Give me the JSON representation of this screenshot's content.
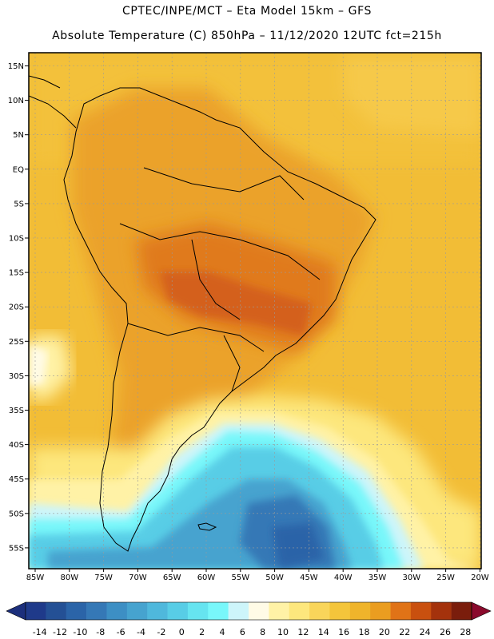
{
  "header": {
    "line1": "CPTEC/INPE/MCT –  Eta Model 15km – GFS",
    "line2": "Absolute Temperature (C) 850hPa – 11/12/2020 12UTC fct=215h"
  },
  "map": {
    "lat_labels": [
      "15N",
      "10N",
      "5N",
      "EQ",
      "5S",
      "10S",
      "15S",
      "20S",
      "25S",
      "30S",
      "35S",
      "40S",
      "45S",
      "50S",
      "55S"
    ],
    "lon_labels": [
      "85W",
      "80W",
      "75W",
      "70W",
      "65W",
      "60W",
      "55W",
      "50W",
      "45W",
      "40W",
      "35W",
      "30W",
      "25W",
      "20W"
    ],
    "colorbar": {
      "labels": [
        "-14",
        "-12",
        "-10",
        "-8",
        "-6",
        "-4",
        "-2",
        "0",
        "2",
        "4",
        "6",
        "8",
        "10",
        "12",
        "14",
        "16",
        "18",
        "20",
        "22",
        "24",
        "26",
        "28"
      ],
      "colors": [
        "#1f3a8a",
        "#245095",
        "#2b64a8",
        "#3578b6",
        "#3d8fc4",
        "#46a3cf",
        "#4fb8dc",
        "#58cde6",
        "#66e4f0",
        "#78f7fa",
        "#cdf5fa",
        "#fffbe6",
        "#fff2a6",
        "#fde77d",
        "#f9d55a",
        "#f4c53b",
        "#efb42b",
        "#ea9d20",
        "#e07317",
        "#c9500f",
        "#a4320c",
        "#7a1d0c"
      ],
      "low_color": "#1c2f7c",
      "high_color": "#8a0a2c"
    }
  }
}
